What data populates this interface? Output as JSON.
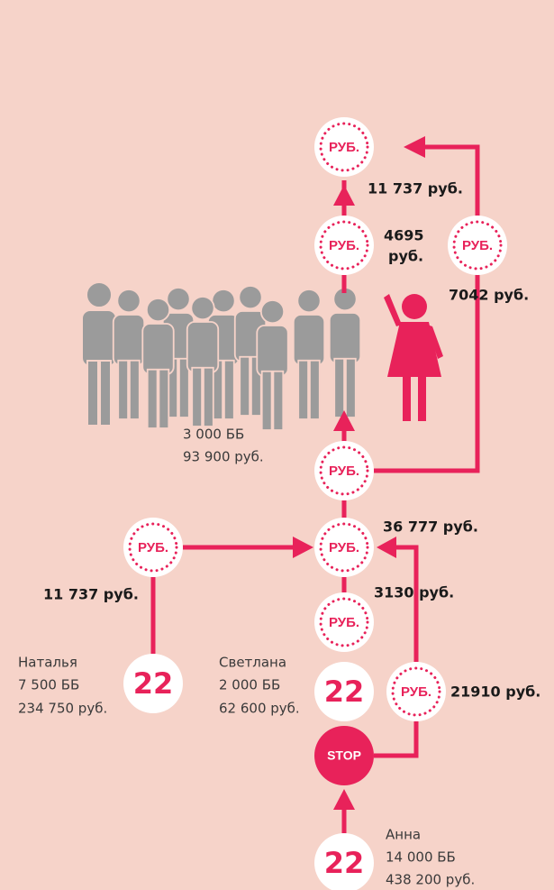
{
  "coin_label": "РУБ.",
  "stop_label": "STOP",
  "level_label": "22",
  "amounts": {
    "top": "11 737 руб.",
    "mid_amount": "4695",
    "mid_unit": "руб.",
    "right": "7042 руб.",
    "center": "36 777 руб.",
    "left": "11 737 руб.",
    "lower": "3130 руб.",
    "bottom_right": "21910 руб."
  },
  "group": {
    "points": "3 000 ББ",
    "sum": "93 900 руб."
  },
  "people": [
    {
      "name": "Наталья",
      "points": "7 500 ББ",
      "sum": "234 750 руб."
    },
    {
      "name": "Светлана",
      "points": "2 000 ББ",
      "sum": "62 600 руб."
    },
    {
      "name": "Анна",
      "points": "14 000 ББ",
      "sum": "438 200 руб."
    }
  ]
}
